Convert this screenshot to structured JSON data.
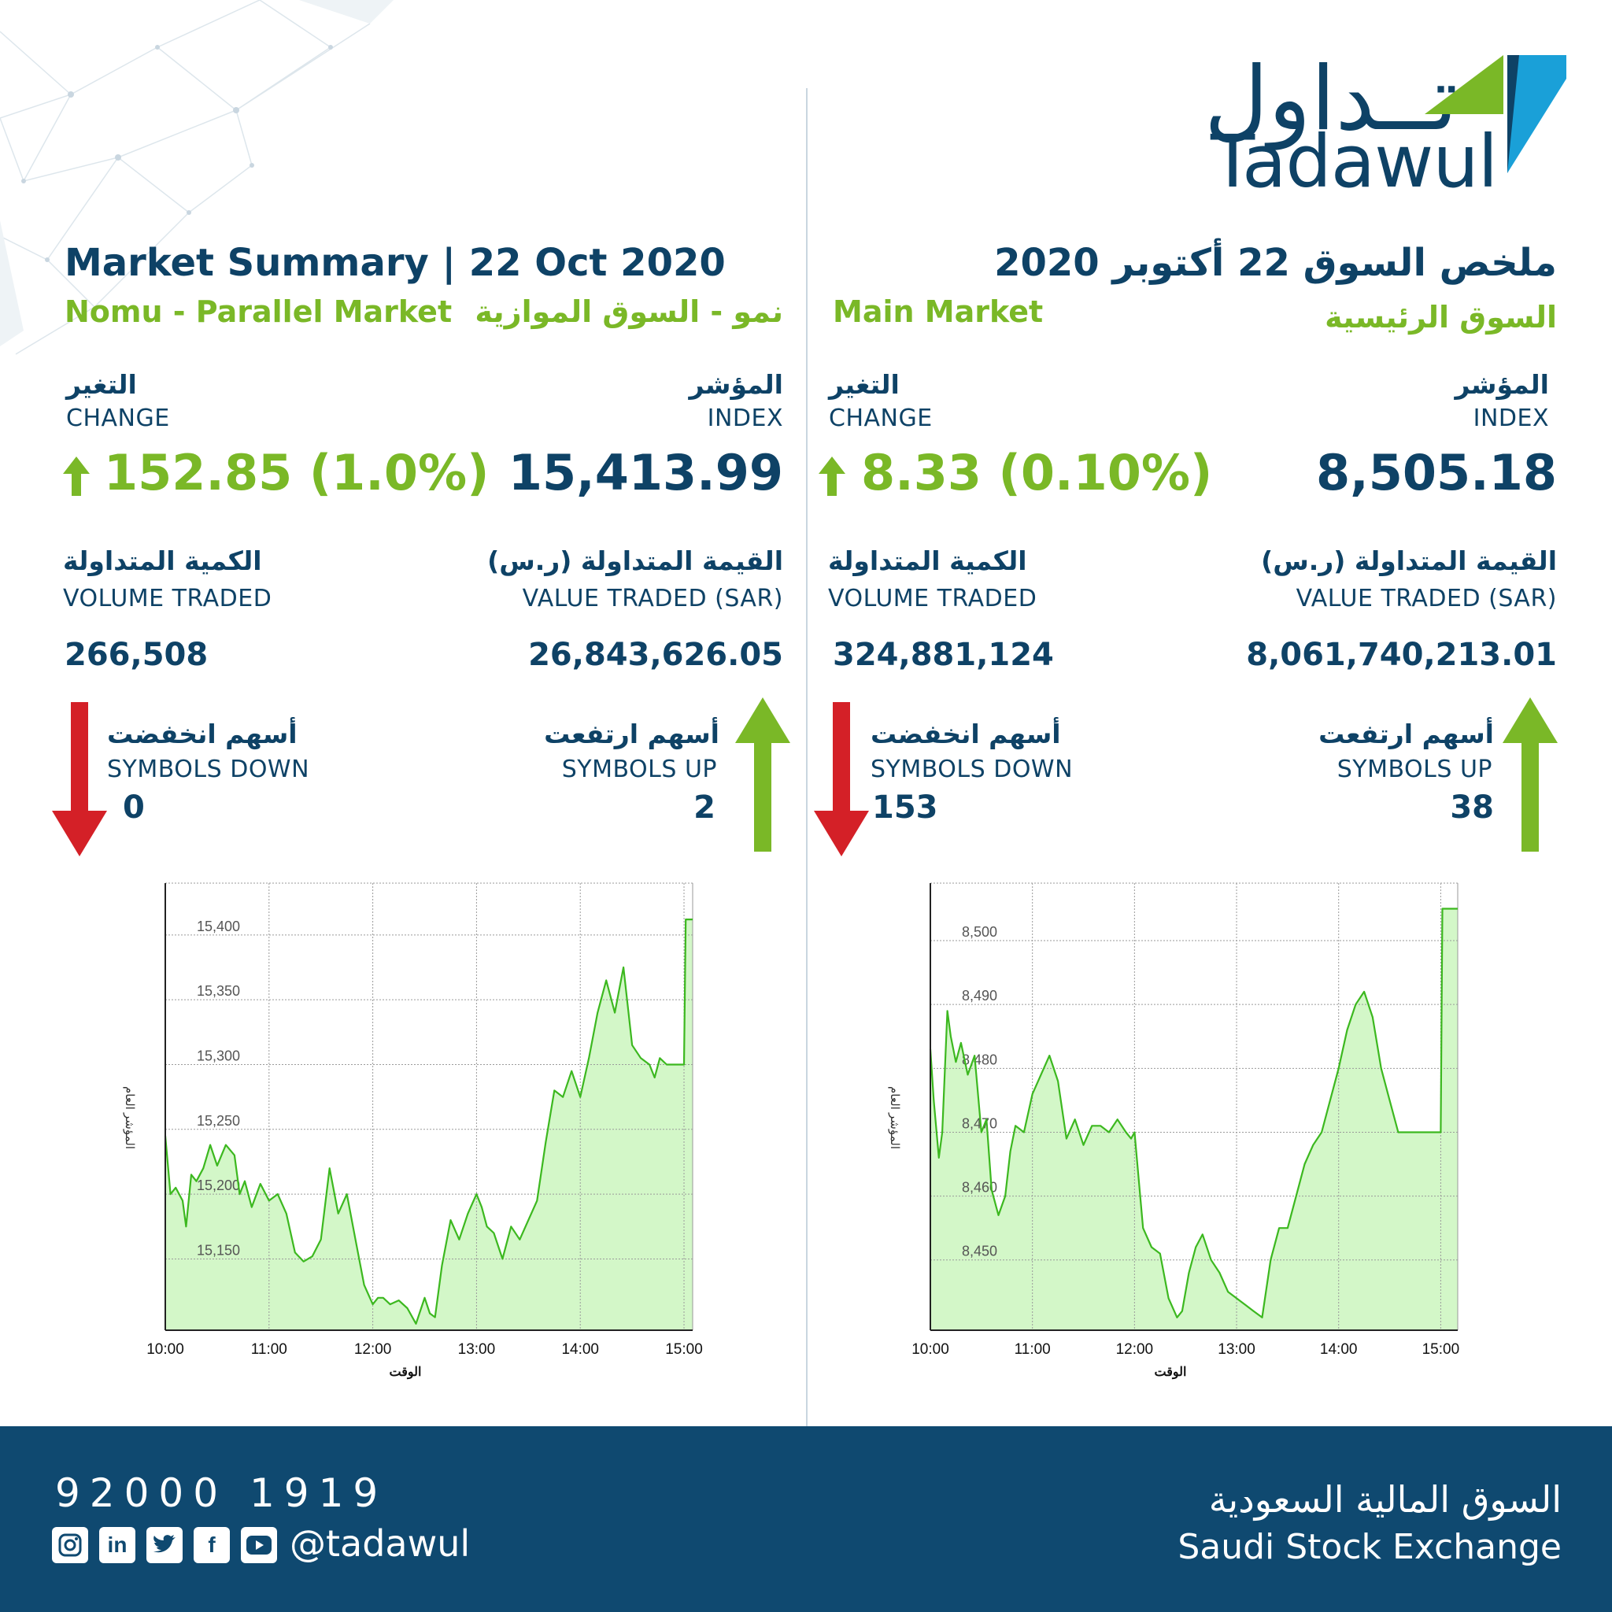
{
  "brand": {
    "logo_ar": "تــداول",
    "logo_en": "Tadawul",
    "colors": {
      "navy": "#0e4266",
      "green": "#7ab827",
      "red": "#d42027",
      "chart_line": "#3cb81f",
      "chart_fill": "#d3f7c8",
      "footer": "#0f4970"
    }
  },
  "header": {
    "title_en": "Market Summary | 22 Oct 2020",
    "title_ar": "ملخص السوق 22 أكتوبر 2020"
  },
  "nomu": {
    "name_en": "Nomu - Parallel Market",
    "name_ar": "نمو - السوق الموازية",
    "index_label_ar": "المؤشر",
    "index_label_en": "INDEX",
    "index_value": "15,413.99",
    "change_label_ar": "التغير",
    "change_label_en": "CHANGE",
    "change_value": "152.85 (1.0%)",
    "value_label_ar": "القيمة المتداولة (ر.س)",
    "value_label_en": "VALUE TRADED (SAR)",
    "value_value": "26,843,626.05",
    "volume_label_ar": "الكمية المتداولة",
    "volume_label_en": "VOLUME TRADED",
    "volume_value": "266,508",
    "up_label_ar": "أسهم ارتفعت",
    "up_label_en": "SYMBOLS UP",
    "up_value": "2",
    "down_label_ar": "أسهم انخفضت",
    "down_label_en": "SYMBOLS DOWN",
    "down_value": "0",
    "arrow_up_icon": "green-up-arrow-icon",
    "arrow_down_icon": "red-down-arrow-icon"
  },
  "main": {
    "name_en": "Main Market",
    "name_ar": "السوق الرئيسية",
    "index_label_ar": "المؤشر",
    "index_label_en": "INDEX",
    "index_value": "8,505.18",
    "change_label_ar": "التغير",
    "change_label_en": "CHANGE",
    "change_value": "8.33 (0.10%)",
    "value_label_ar": "القيمة المتداولة (ر.س)",
    "value_label_en": "VALUE TRADED (SAR)",
    "value_value": "8,061,740,213.01",
    "volume_label_ar": "الكمية المتداولة",
    "volume_label_en": "VOLUME TRADED",
    "volume_value": "324,881,124",
    "up_label_ar": "أسهم ارتفعت",
    "up_label_en": "SYMBOLS UP",
    "up_value": "38",
    "down_label_ar": "أسهم انخفضت",
    "down_label_en": "SYMBOLS DOWN",
    "down_value": "153"
  },
  "chart_data": [
    {
      "type": "area",
      "ylabel": "المؤشر العام",
      "xlabel": "الوقت",
      "xlim": [
        "10:00",
        "15:05"
      ],
      "ylim": [
        15095,
        15440
      ],
      "grid": true,
      "x_ticks": [
        "10:00",
        "11:00",
        "12:00",
        "13:00",
        "14:00",
        "15:00"
      ],
      "y_ticks": [
        15150,
        15200,
        15250,
        15300,
        15350,
        15400
      ],
      "y_tick_labels": [
        "15,150",
        "15,200",
        "15,250",
        "15,300",
        "15,350",
        "15,400"
      ],
      "x": [
        "10:00",
        "10:03",
        "10:06",
        "10:10",
        "10:12",
        "10:15",
        "10:18",
        "10:22",
        "10:26",
        "10:30",
        "10:35",
        "10:40",
        "10:43",
        "10:46",
        "10:50",
        "10:55",
        "11:00",
        "11:05",
        "11:10",
        "11:15",
        "11:20",
        "11:25",
        "11:30",
        "11:35",
        "11:40",
        "11:45",
        "11:50",
        "11:55",
        "12:00",
        "12:03",
        "12:06",
        "12:10",
        "12:15",
        "12:20",
        "12:25",
        "12:30",
        "12:33",
        "12:36",
        "12:40",
        "12:45",
        "12:50",
        "12:55",
        "13:00",
        "13:03",
        "13:06",
        "13:10",
        "13:15",
        "13:20",
        "13:25",
        "13:30",
        "13:35",
        "13:40",
        "13:45",
        "13:50",
        "13:55",
        "14:00",
        "14:05",
        "14:10",
        "14:15",
        "14:20",
        "14:25",
        "14:30",
        "14:35",
        "14:40",
        "14:43",
        "14:46",
        "14:50",
        "14:53",
        "14:56",
        "15:00",
        "15:01",
        "15:02",
        "15:03",
        "15:05"
      ],
      "y": [
        15245,
        15200,
        15205,
        15195,
        15175,
        15215,
        15210,
        15220,
        15238,
        15222,
        15238,
        15230,
        15200,
        15210,
        15190,
        15208,
        15195,
        15200,
        15185,
        15155,
        15148,
        15152,
        15165,
        15220,
        15185,
        15200,
        15165,
        15130,
        15115,
        15120,
        15120,
        15115,
        15118,
        15112,
        15100,
        15120,
        15108,
        15105,
        15145,
        15180,
        15165,
        15185,
        15200,
        15190,
        15175,
        15170,
        15150,
        15175,
        15165,
        15180,
        15195,
        15240,
        15280,
        15275,
        15295,
        15275,
        15305,
        15340,
        15365,
        15340,
        15375,
        15315,
        15305,
        15300,
        15290,
        15305,
        15300,
        15300,
        15300,
        15300,
        15412,
        15412,
        15412,
        15412
      ]
    },
    {
      "type": "area",
      "ylabel": "المؤشر العام",
      "xlabel": "الوقت",
      "xlim": [
        "10:00",
        "15:10"
      ],
      "ylim": [
        8439,
        8509
      ],
      "grid": true,
      "x_ticks": [
        "10:00",
        "11:00",
        "12:00",
        "13:00",
        "14:00",
        "15:00"
      ],
      "y_ticks": [
        8450,
        8460,
        8470,
        8480,
        8490,
        8500
      ],
      "y_tick_labels": [
        "8,450",
        "8,460",
        "8,470",
        "8,480",
        "8,490",
        "8,500"
      ],
      "x": [
        "10:00",
        "10:02",
        "10:05",
        "10:07",
        "10:10",
        "10:12",
        "10:15",
        "10:18",
        "10:22",
        "10:26",
        "10:30",
        "10:33",
        "10:36",
        "10:40",
        "10:44",
        "10:47",
        "10:50",
        "10:55",
        "11:00",
        "11:05",
        "11:10",
        "11:15",
        "11:20",
        "11:25",
        "11:30",
        "11:35",
        "11:40",
        "11:45",
        "11:50",
        "11:55",
        "11:58",
        "12:00",
        "12:05",
        "12:10",
        "12:15",
        "12:20",
        "12:25",
        "12:28",
        "12:32",
        "12:36",
        "12:40",
        "12:45",
        "12:50",
        "12:55",
        "13:00",
        "13:05",
        "13:10",
        "13:15",
        "13:20",
        "13:25",
        "13:30",
        "13:35",
        "13:40",
        "13:45",
        "13:50",
        "13:55",
        "14:00",
        "14:05",
        "14:10",
        "14:15",
        "14:20",
        "14:25",
        "14:30",
        "14:35",
        "14:40",
        "14:45",
        "14:50",
        "14:55",
        "15:00",
        "15:01",
        "15:02",
        "15:04",
        "15:06",
        "15:08",
        "15:10"
      ],
      "y": [
        8483,
        8475,
        8466,
        8470,
        8489,
        8485,
        8481,
        8484,
        8479,
        8482,
        8470,
        8472,
        8461,
        8457,
        8460,
        8467,
        8471,
        8470,
        8476,
        8479,
        8482,
        8478,
        8469,
        8472,
        8468,
        8471,
        8471,
        8470,
        8472,
        8470,
        8469,
        8470,
        8455,
        8452,
        8451,
        8444,
        8441,
        8442,
        8448,
        8452,
        8454,
        8450,
        8448,
        8445,
        8444,
        8443,
        8442,
        8441,
        8450,
        8455,
        8455,
        8460,
        8465,
        8468,
        8470,
        8475,
        8480,
        8486,
        8490,
        8492,
        8488,
        8480,
        8475,
        8470,
        8470,
        8470,
        8470,
        8470,
        8470,
        8505,
        8505,
        8505,
        8505,
        8505,
        8505
      ]
    }
  ],
  "footer": {
    "phone": "92000 1919",
    "handle": "@tadawul",
    "name_ar": "السوق المالية السعودية",
    "name_en": "Saudi Stock Exchange",
    "icons": [
      "instagram-icon",
      "linkedin-icon",
      "twitter-icon",
      "facebook-icon",
      "youtube-icon"
    ]
  }
}
